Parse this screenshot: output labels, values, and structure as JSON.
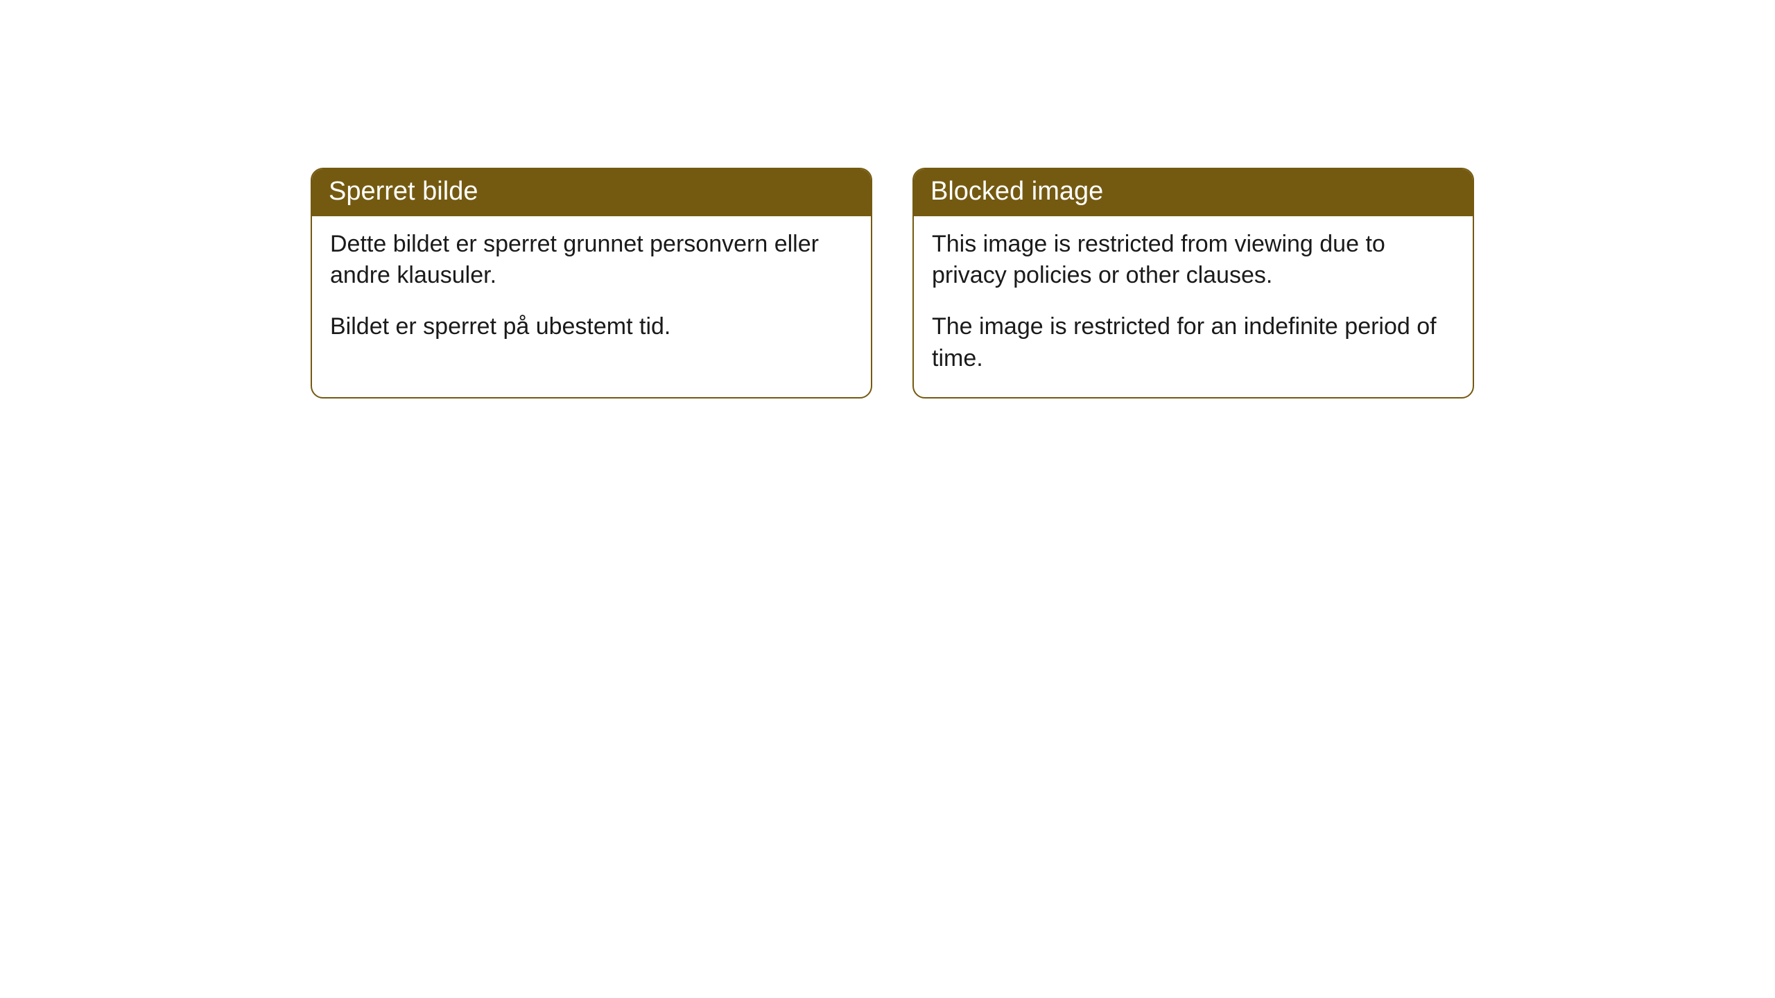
{
  "cards": [
    {
      "title": "Sperret bilde",
      "paragraph1": "Dette bildet er sperret grunnet personvern eller andre klausuler.",
      "paragraph2": "Bildet er sperret på ubestemt tid."
    },
    {
      "title": "Blocked image",
      "paragraph1": "This image is restricted from viewing due to privacy policies or other clauses.",
      "paragraph2": "The image is restricted for an indefinite period of time."
    }
  ],
  "style": {
    "header_background": "#745a11",
    "header_text_color": "#ffffff",
    "border_color": "#745a11",
    "body_background": "#ffffff",
    "body_text_color": "#1a1a1a",
    "border_radius": 18,
    "header_fontsize": 38,
    "body_fontsize": 34
  }
}
